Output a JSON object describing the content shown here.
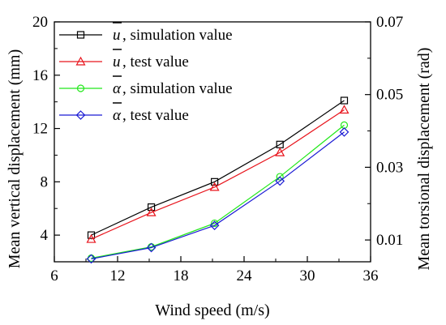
{
  "chart_data": {
    "type": "line",
    "xlabel": "Wind speed (m/s)",
    "ylabel": "Mean vertical displacement  (mm)",
    "y2label": "Mean torsional displacement  (rad)",
    "xlim": [
      6,
      36
    ],
    "ylim": [
      2,
      20
    ],
    "y2lim": [
      0.004,
      0.07
    ],
    "xticks": [
      6,
      12,
      18,
      24,
      30,
      36
    ],
    "yticks": [
      4,
      8,
      12,
      16,
      20
    ],
    "y2ticks": [
      0.01,
      0.03,
      0.05,
      0.07
    ],
    "x_tick_labels": [
      "6",
      "12",
      "18",
      "24",
      "30",
      "36"
    ],
    "y_tick_labels": [
      "4",
      "8",
      "12",
      "16",
      "20"
    ],
    "y2_tick_labels": [
      "0.01",
      "0.03",
      "0.05",
      "0.07"
    ],
    "legend_position": "top-left",
    "grid": false,
    "series": [
      {
        "name": ", simulation value",
        "symbol": "u",
        "axis": "left",
        "marker": "square",
        "color": "#000000",
        "x": [
          9.5,
          15.2,
          21.2,
          27.4,
          33.5
        ],
        "y": [
          4.0,
          6.1,
          8.0,
          10.8,
          14.1
        ]
      },
      {
        "name": ", test value",
        "symbol": "u",
        "axis": "left",
        "marker": "triangle",
        "color": "#e8141c",
        "x": [
          9.5,
          15.2,
          21.2,
          27.4,
          33.5
        ],
        "y": [
          3.7,
          5.7,
          7.6,
          10.2,
          13.4
        ]
      },
      {
        "name": ", simulation value",
        "symbol": "α",
        "axis": "right",
        "marker": "circle",
        "color": "#22e81a",
        "x": [
          9.5,
          15.2,
          21.2,
          27.4,
          33.5
        ],
        "y": [
          0.005,
          0.0081,
          0.0146,
          0.0274,
          0.0416
        ]
      },
      {
        "name": ", test value",
        "symbol": "α",
        "axis": "right",
        "marker": "diamond",
        "color": "#1a1ad4",
        "x": [
          9.5,
          15.2,
          21.2,
          27.4,
          33.5
        ],
        "y": [
          0.0048,
          0.0079,
          0.014,
          0.0262,
          0.0397
        ]
      }
    ]
  }
}
